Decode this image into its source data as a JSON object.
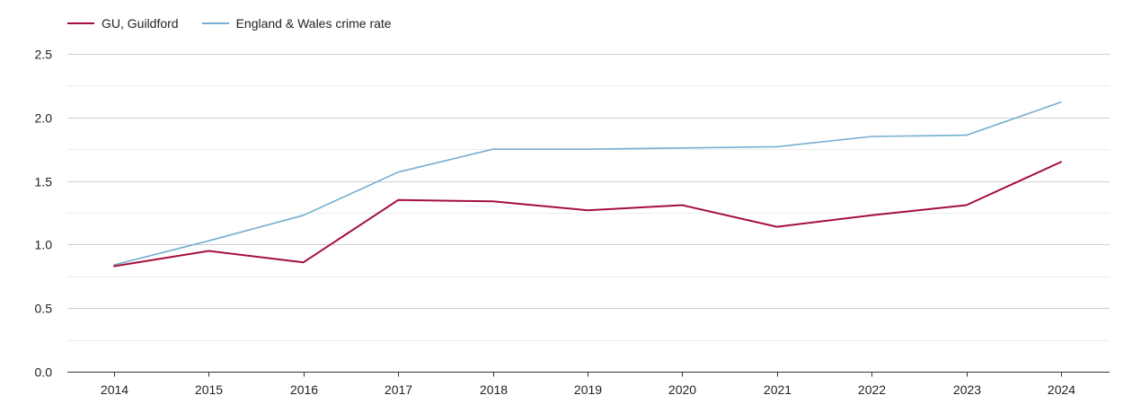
{
  "chart_data": {
    "type": "line",
    "title": "",
    "xlabel": "",
    "ylabel": "",
    "ylim": [
      0,
      2.5
    ],
    "yticks": [
      "0.0",
      "0.5",
      "1.0",
      "1.5",
      "2.0",
      "2.5"
    ],
    "ytick_values": [
      0,
      0.5,
      1.0,
      1.5,
      2.0,
      2.5
    ],
    "categories": [
      "2014",
      "2015",
      "2016",
      "2017",
      "2018",
      "2019",
      "2020",
      "2021",
      "2022",
      "2023",
      "2024"
    ],
    "legend_position": "top-left",
    "grid": true,
    "series": [
      {
        "name": "GU, Guildford",
        "color": "#a50f3a",
        "values": [
          0.83,
          0.95,
          0.86,
          1.35,
          1.34,
          1.27,
          1.31,
          1.14,
          1.23,
          1.31,
          1.65
        ]
      },
      {
        "name": "England & Wales crime rate",
        "color": "#74aed0",
        "values": [
          0.84,
          1.03,
          1.23,
          1.57,
          1.75,
          1.75,
          1.76,
          1.77,
          1.85,
          1.86,
          2.12
        ]
      }
    ]
  }
}
